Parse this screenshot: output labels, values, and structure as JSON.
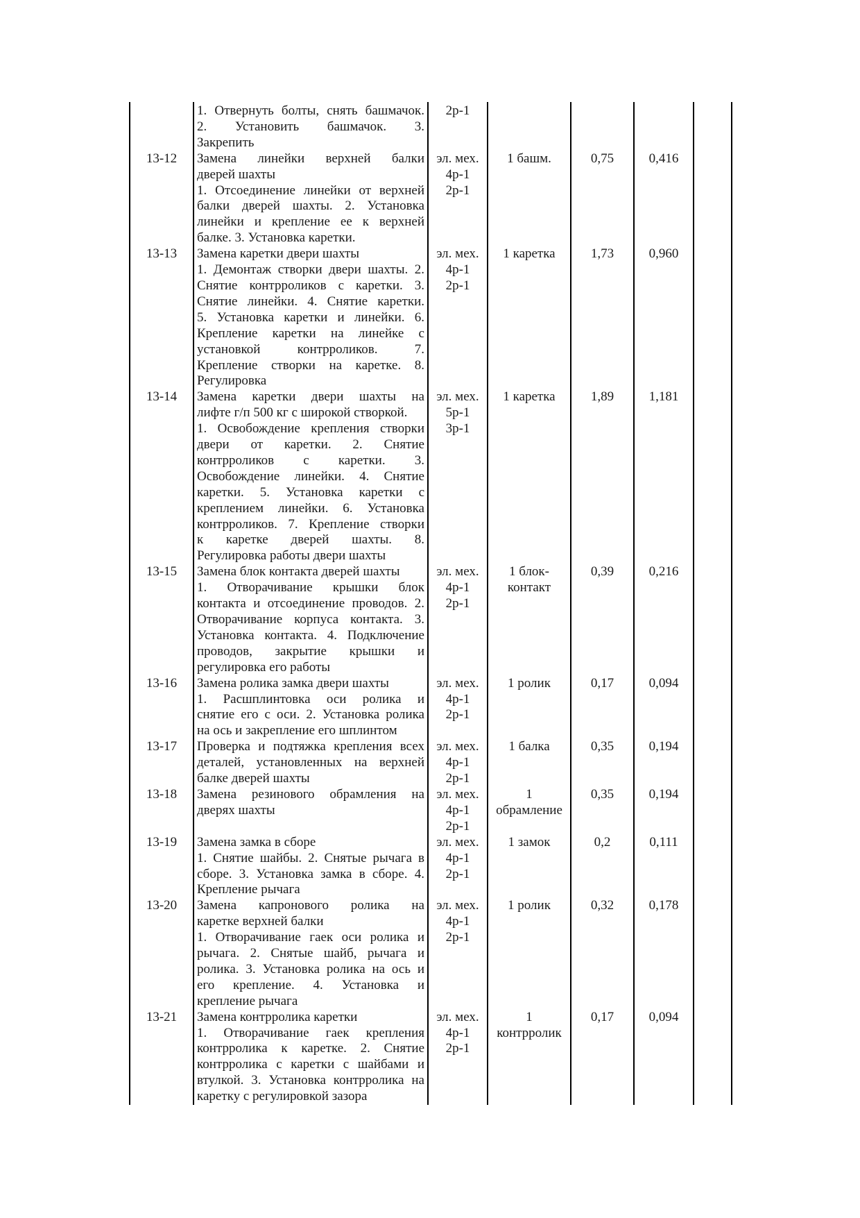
{
  "colors": {
    "page_background": "#ffffff",
    "text": "#1b1b1b",
    "rule": "#000000"
  },
  "table": {
    "rows": [
      {
        "code": "",
        "description": [
          [
            "1. Отвернуть болты, снять башмачок.",
            "2. Установить башмачок. 3.",
            "Закрепить"
          ]
        ],
        "profession": [
          "2р-1"
        ],
        "unit": [],
        "value1": "",
        "value2": ""
      },
      {
        "code": "13-12",
        "description": [
          [
            "Замена линейки верхней балки",
            "дверей шахты"
          ],
          [
            "1. Отсоединение линейки от верхней",
            "балки дверей шахты. 2. Установка",
            "линейки и крепление ее к верхней",
            "балке. 3. Установка каретки."
          ]
        ],
        "profession": [
          "эл. мех.",
          "4р-1",
          "2р-1"
        ],
        "unit": [
          "1 башм."
        ],
        "value1": "0,75",
        "value2": "0,416"
      },
      {
        "code": "13-13",
        "description": [
          [
            "Замена каретки двери шахты"
          ],
          [
            "1. Демонтаж створки двери шахты. 2.",
            "Снятие контрроликов с каретки. 3.",
            "Снятие линейки. 4. Снятие каретки.",
            "5. Установка каретки и линейки. 6.",
            "Крепление каретки на линейке с",
            "установкой контрроликов. 7.",
            "Крепление створки на каретке. 8.",
            "Регулировка"
          ]
        ],
        "profession": [
          "эл. мех.",
          "4р-1",
          "2р-1"
        ],
        "unit": [
          "1 каретка"
        ],
        "value1": "1,73",
        "value2": "0,960"
      },
      {
        "code": "13-14",
        "description": [
          [
            "Замена каретки двери шахты на",
            "лифте г/п 500 кг с широкой створкой."
          ],
          [
            "1. Освобождение крепления створки",
            "двери от каретки. 2. Снятие",
            "контрроликов с каретки. 3.",
            "Освобождение линейки. 4. Снятие",
            "каретки. 5. Установка каретки с",
            "креплением линейки. 6. Установка",
            "контрроликов. 7. Крепление створки",
            "к каретке дверей шахты. 8.",
            "Регулировка работы двери шахты"
          ]
        ],
        "profession": [
          "эл. мех.",
          "5р-1",
          "3р-1"
        ],
        "unit": [
          "1 каретка"
        ],
        "value1": "1,89",
        "value2": "1,181"
      },
      {
        "code": "13-15",
        "description": [
          [
            "Замена блок контакта дверей шахты"
          ],
          [
            "1. Отворачивание крышки блок",
            "контакта и отсоединение проводов. 2.",
            "Отворачивание корпуса контакта. 3.",
            "Установка контакта. 4. Подключение",
            "проводов, закрытие крышки и",
            "регулировка его работы"
          ]
        ],
        "profession": [
          "эл. мех.",
          "4р-1",
          "2р-1"
        ],
        "unit": [
          "1 блок-",
          "контакт"
        ],
        "value1": "0,39",
        "value2": "0,216"
      },
      {
        "code": "13-16",
        "description": [
          [
            "Замена ролика замка двери шахты"
          ],
          [
            "1. Расшплинтовка оси ролика и",
            "снятие его с оси. 2. Установка ролика",
            "на ось и закрепление его шплинтом"
          ]
        ],
        "profession": [
          "эл. мех.",
          "4р-1",
          "2р-1"
        ],
        "unit": [
          "1 ролик"
        ],
        "value1": "0,17",
        "value2": "0,094"
      },
      {
        "code": "13-17",
        "description": [
          [
            "Проверка и подтяжка крепления всех",
            "деталей, установленных на верхней",
            "балке дверей шахты"
          ]
        ],
        "profession": [
          "эл. мех.",
          "4р-1",
          "2р-1"
        ],
        "unit": [
          "1 балка"
        ],
        "value1": "0,35",
        "value2": "0,194"
      },
      {
        "code": "13-18",
        "description": [
          [
            "Замена резинового обрамления на",
            "дверях шахты"
          ]
        ],
        "profession": [
          "эл. мех.",
          "4р-1",
          "2р-1"
        ],
        "unit": [
          "1",
          "обрамление"
        ],
        "value1": "0,35",
        "value2": "0,194"
      },
      {
        "code": "13-19",
        "description": [
          [
            "Замена замка в сборе"
          ],
          [
            "1. Снятие шайбы. 2. Снятые рычага в",
            "сборе. 3. Установка замка в сборе. 4.",
            "Крепление рычага"
          ]
        ],
        "profession": [
          "эл. мех.",
          "4р-1",
          "2р-1"
        ],
        "unit": [
          "1 замок"
        ],
        "value1": "0,2",
        "value2": "0,111"
      },
      {
        "code": "13-20",
        "description": [
          [
            "Замена капронового ролика на",
            "каретке верхней балки"
          ],
          [
            "1. Отворачивание гаек оси ролика и",
            "рычага. 2. Снятые шайб, рычага и",
            "ролика. 3. Установка ролика на ось и",
            "его крепление. 4. Установка и",
            "крепление рычага"
          ]
        ],
        "profession": [
          "эл. мех.",
          "4р-1",
          "2р-1"
        ],
        "unit": [
          "1 ролик"
        ],
        "value1": "0,32",
        "value2": "0,178"
      },
      {
        "code": "13-21",
        "description": [
          [
            "Замена контрролика каретки"
          ],
          [
            "1. Отворачивание гаек крепления",
            "контрролика к каретке. 2. Снятие",
            "контрролика с каретки с шайбами и",
            "втулкой. 3. Установка контрролика на",
            "каретку с регулировкой зазора"
          ]
        ],
        "profession": [
          "эл. мех.",
          "4р-1",
          "2р-1"
        ],
        "unit": [
          "1",
          "контрролик"
        ],
        "value1": "0,17",
        "value2": "0,094"
      }
    ]
  }
}
